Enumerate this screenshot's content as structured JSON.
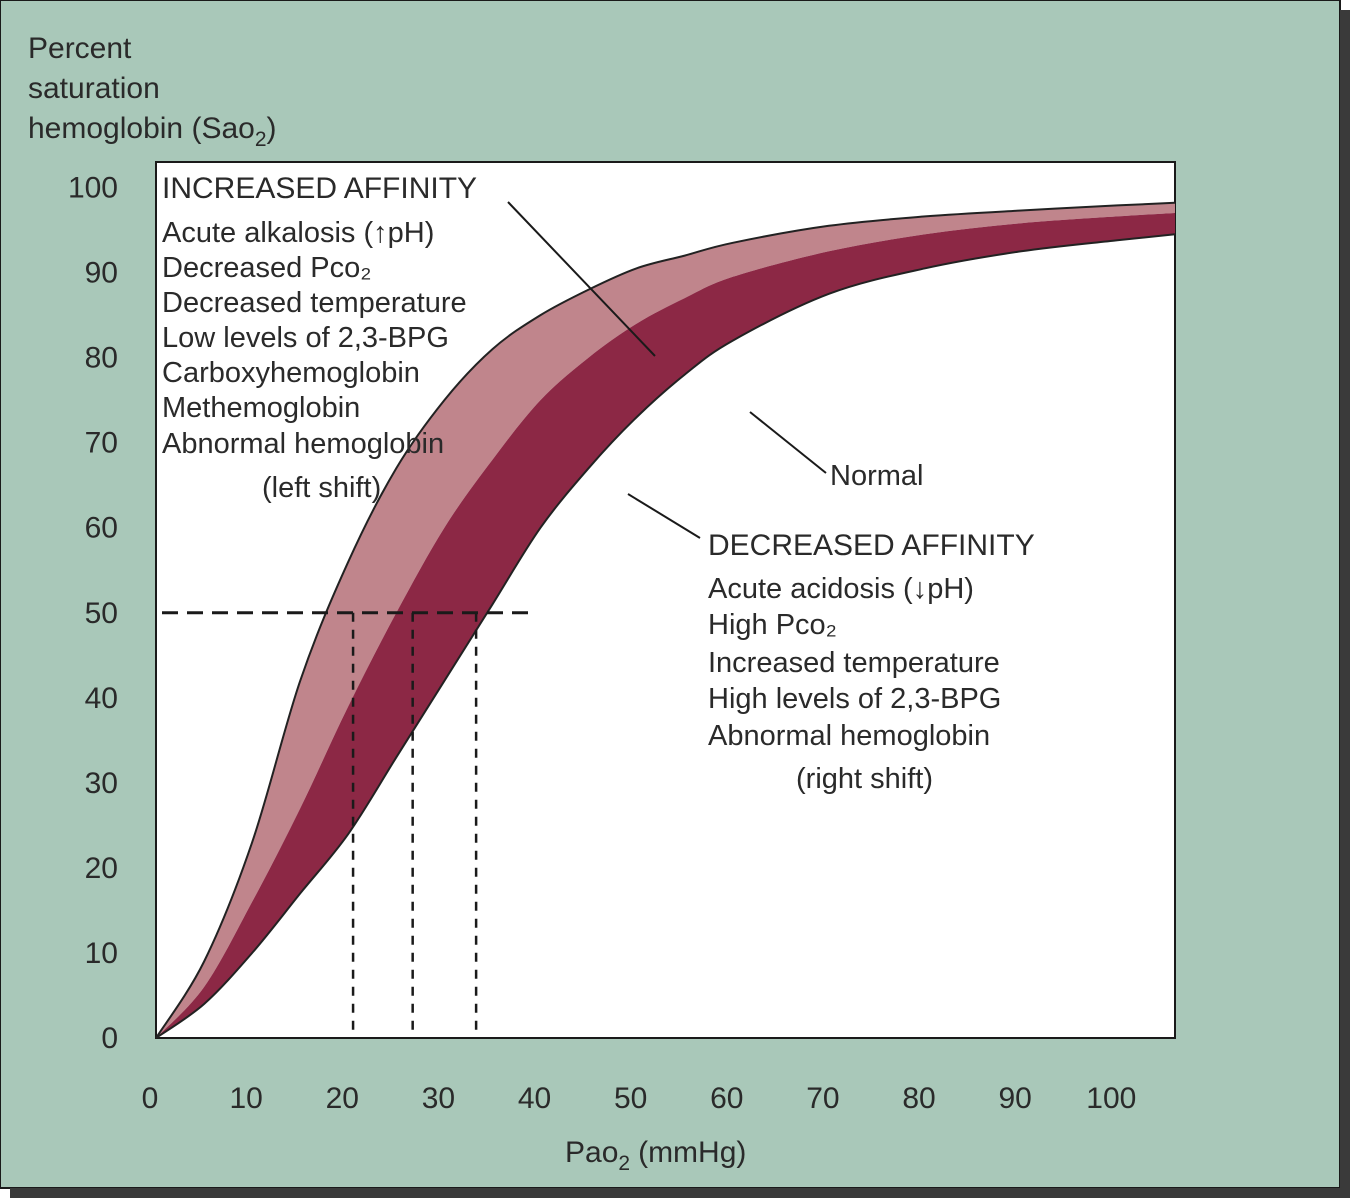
{
  "figure": {
    "background_color": "#a9c8b9",
    "plot_background": "#ffffff",
    "ylabel_lines": [
      "Percent",
      "saturation",
      "hemoglobin (Sao",
      ")"
    ],
    "ylabel_subscript": "2",
    "xlabel": "Pao",
    "xlabel_subscript": "2",
    "xlabel_unit": "(mmHg)"
  },
  "chart_data": {
    "type": "area",
    "xlabel": "PaO2 (mmHg)",
    "ylabel": "Percent saturation hemoglobin (SaO2)",
    "xlim": [
      0,
      106
    ],
    "ylim": [
      0,
      103
    ],
    "x_ticks": [
      "0",
      "10",
      "20",
      "30",
      "40",
      "50",
      "60",
      "70",
      "80",
      "90",
      "100"
    ],
    "y_ticks": [
      "0",
      "10",
      "20",
      "30",
      "40",
      "50",
      "60",
      "70",
      "80",
      "90",
      "100"
    ],
    "grid": false,
    "colors": {
      "increased_affinity_band": "#c0858c",
      "decreased_affinity_band": "#8c2845",
      "outline": "#222222"
    },
    "series": [
      {
        "x": [
          0,
          5,
          10,
          15,
          20,
          25,
          30,
          35,
          40,
          45,
          50,
          55,
          60,
          70,
          80,
          90,
          100,
          106
        ],
        "y": [
          0,
          9,
          23,
          42,
          56,
          67,
          75,
          81,
          85,
          88,
          90.5,
          92,
          93.5,
          95.5,
          96.6,
          97.3,
          97.9,
          98.2
        ]
      },
      {
        "name": "Normal",
        "x": [
          0,
          5,
          10,
          15,
          20,
          25,
          30,
          35,
          40,
          45,
          50,
          55,
          60,
          70,
          80,
          90,
          100,
          106
        ],
        "y": [
          0,
          6,
          16,
          27,
          39,
          50,
          60,
          68,
          75,
          80,
          84,
          87,
          89.5,
          92.5,
          94.5,
          95.8,
          96.6,
          97
        ]
      },
      {
        "x": [
          0,
          5,
          10,
          15,
          20,
          25,
          30,
          35,
          40,
          45,
          50,
          55,
          60,
          70,
          80,
          90,
          100,
          106
        ],
        "y": [
          0,
          4,
          10,
          17,
          24,
          33,
          42,
          51,
          60,
          67,
          73,
          78,
          82,
          87.5,
          90.5,
          92.5,
          93.8,
          94.5
        ]
      }
    ],
    "p50_reference": {
      "y": 50,
      "x_values": [
        20.5,
        26.7,
        33.3
      ]
    },
    "annotations": {
      "increased": {
        "heading": "INCREASED AFFINITY",
        "items": [
          "Acute alkalosis (↑pH)",
          "Decreased Pco₂",
          "Decreased temperature",
          "Low levels of 2,3-BPG",
          "Carboxyhemoglobin",
          "Methemoglobin",
          "Abnormal hemoglobin"
        ],
        "note": "(left shift)"
      },
      "normal": "Normal",
      "decreased": {
        "heading": "DECREASED AFFINITY",
        "items": [
          "Acute acidosis (↓pH)",
          "High Pco₂",
          "Increased temperature",
          "High levels of 2,3-BPG",
          "Abnormal hemoglobin"
        ],
        "note": "(right shift)"
      }
    }
  }
}
